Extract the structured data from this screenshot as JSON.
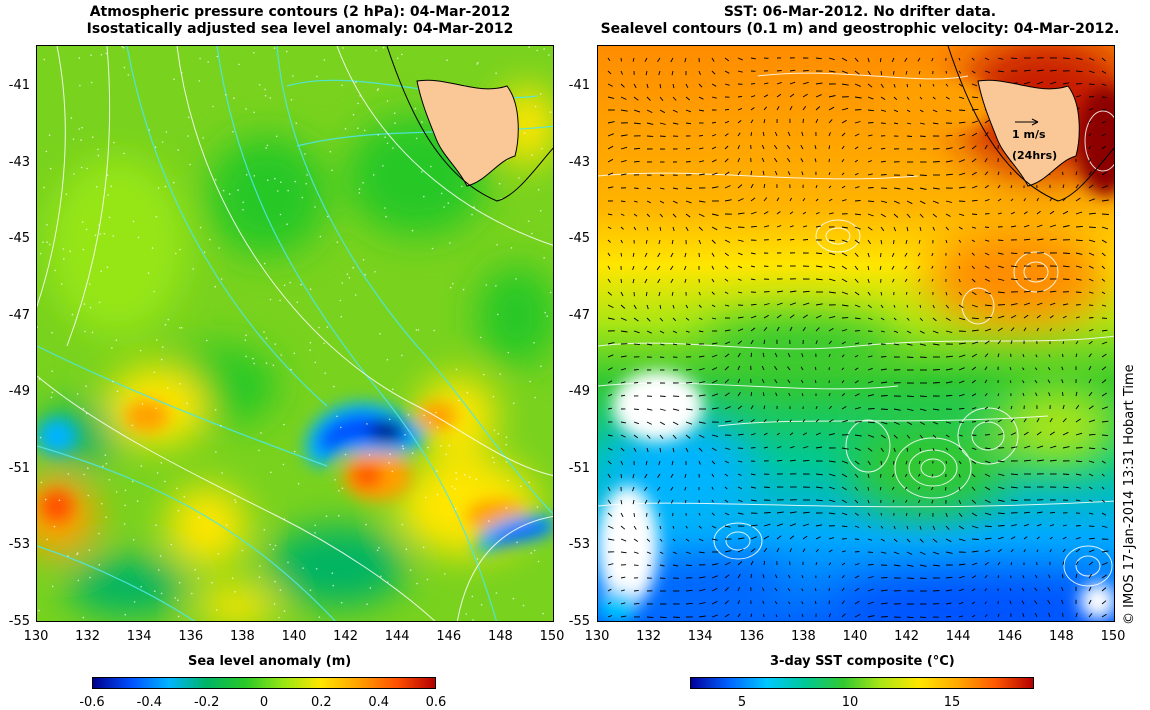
{
  "left_panel": {
    "title_line1": "Atmospheric pressure contours (2 hPa): 04-Mar-2012",
    "title_line2": "Isostatically adjusted sea level anomaly: 04-Mar-2012",
    "xlabel": "Sea level anomaly (m)",
    "colorbar_ticks": [
      "-0.6",
      "-0.4",
      "-0.2",
      "0",
      "0.2",
      "0.4",
      "0.6"
    ],
    "colorbar_range": [
      -0.6,
      0.6
    ]
  },
  "right_panel": {
    "title_line1": "SST: 06-Mar-2012. No drifter data.",
    "title_line2": "Sealevel contours (0.1 m) and geostrophic velocity: 04-Mar-2012.",
    "xlabel": "3-day SST composite (°C)",
    "colorbar_ticks": [
      "5",
      "10",
      "15"
    ],
    "velocity_scale_label": "1 m/s",
    "velocity_scale_sub": "(24hrs)"
  },
  "axes": {
    "lon_ticks": [
      "130",
      "132",
      "134",
      "136",
      "138",
      "140",
      "142",
      "144",
      "146",
      "148",
      "150"
    ],
    "lat_ticks": [
      "-41",
      "-43",
      "-45",
      "-47",
      "-49",
      "-51",
      "-53",
      "-55"
    ],
    "lon_range": [
      130,
      150
    ],
    "lat_range": [
      -55,
      -40.2
    ]
  },
  "credit": "© IMOS 17-Jan-2014 13:31 Hobart Time",
  "colors": {
    "land": "#fac896",
    "sla_scale": [
      "#00008c",
      "#0050ff",
      "#00b4ff",
      "#00b464",
      "#28c828",
      "#96e614",
      "#ffe600",
      "#ffa000",
      "#ff5000",
      "#b40000"
    ],
    "sst_scale": [
      "#00009c",
      "#0064ff",
      "#00c8ff",
      "#00c896",
      "#32c832",
      "#aae614",
      "#ffe600",
      "#ffaa00",
      "#ff5a00",
      "#b40000"
    ]
  }
}
